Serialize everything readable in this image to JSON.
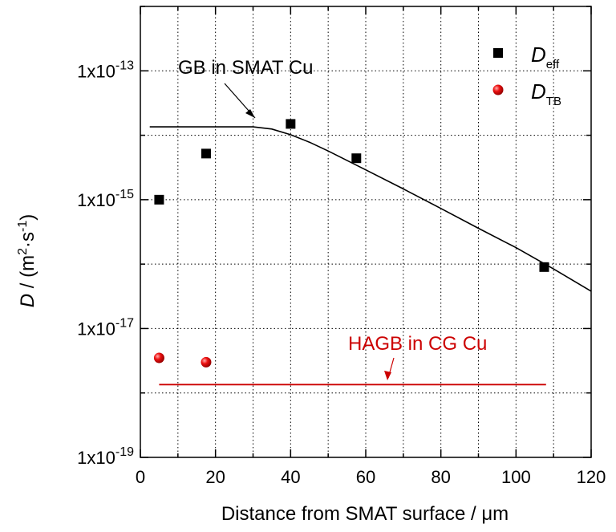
{
  "chart_data": {
    "type": "scatter",
    "title": "",
    "xlabel": "Distance from SMAT surface / μm",
    "ylabel": {
      "var": "D",
      "sep": " / (m",
      "sup1": "2",
      "dot": "·s",
      "sup2": "-1",
      "close": ")"
    },
    "xlim": [
      0,
      120
    ],
    "ylim": [
      1e-19,
      1e-12
    ],
    "yscale": "log",
    "grid": "dotted",
    "legend_position": "top-right",
    "x_ticks": [
      0,
      20,
      40,
      60,
      80,
      100,
      120
    ],
    "y_ticks": [
      {
        "value": 1e-13,
        "base": "1x10",
        "exp": "-13"
      },
      {
        "value": 1e-15,
        "base": "1x10",
        "exp": "-15"
      },
      {
        "value": 1e-17,
        "base": "1x10",
        "exp": "-17"
      },
      {
        "value": 1e-19,
        "base": "1x10",
        "exp": "-19"
      }
    ],
    "series": [
      {
        "name": "eff",
        "legend_main": "D",
        "legend_sub": "eff",
        "marker": "square",
        "color": "#000000",
        "points": [
          [
            5,
            1e-15
          ],
          [
            17.5,
            5.2e-15
          ],
          [
            40,
            1.5e-14
          ],
          [
            57.5,
            4.4e-15
          ],
          [
            107.5,
            9e-17
          ]
        ]
      },
      {
        "name": "TB",
        "legend_main": "D",
        "legend_sub": "TB",
        "marker": "sphere",
        "color": "#e00000",
        "points": [
          [
            5,
            3.5e-18
          ],
          [
            17.5,
            3e-18
          ]
        ]
      }
    ],
    "lines": [
      {
        "label": "GB in SMAT Cu",
        "color": "#000000",
        "points": [
          [
            2.5,
            1.35e-14
          ],
          [
            30,
            1.35e-14
          ],
          [
            35,
            1.25e-14
          ],
          [
            40,
            1.02e-14
          ],
          [
            45,
            7.8e-15
          ],
          [
            50,
            5.7e-15
          ],
          [
            60,
            2.9e-15
          ],
          [
            70,
            1.47e-15
          ],
          [
            80,
            7.3e-16
          ],
          [
            90,
            3.6e-16
          ],
          [
            100,
            1.8e-16
          ],
          [
            110,
            8.4e-17
          ],
          [
            120,
            3.8e-17
          ]
        ]
      },
      {
        "label": "HAGB in CG Cu",
        "color": "#cc0000",
        "points": [
          [
            5,
            1.35e-18
          ],
          [
            108,
            1.35e-18
          ]
        ]
      }
    ]
  }
}
